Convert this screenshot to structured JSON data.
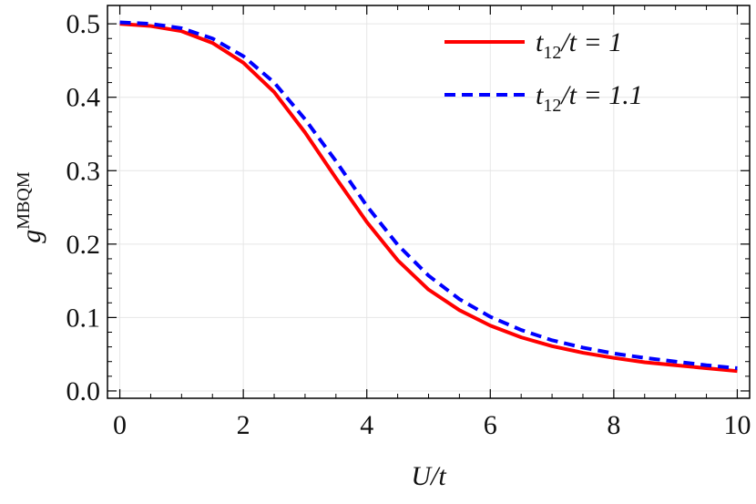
{
  "chart_data": {
    "type": "line",
    "xlabel": "U/t",
    "ylabel": "g^MBQM",
    "ylabel_base": "g",
    "ylabel_sup": "MBQM",
    "xlim": [
      -0.2,
      10.2
    ],
    "ylim": [
      -0.01,
      0.525
    ],
    "xticks": [
      0,
      2,
      4,
      6,
      8,
      10
    ],
    "xtick_labels": [
      "0",
      "2",
      "4",
      "6",
      "8",
      "10"
    ],
    "yticks": [
      0.0,
      0.1,
      0.2,
      0.3,
      0.4,
      0.5
    ],
    "ytick_labels": [
      "0.0",
      "0.1",
      "0.2",
      "0.3",
      "0.4",
      "0.5"
    ],
    "grid": true,
    "legend_position": "top-right",
    "series": [
      {
        "name": "t12/t = 1",
        "legend_base": "t",
        "legend_sub": "12",
        "legend_rest": "/t = 1",
        "color": "#ff0000",
        "style": "solid",
        "x": [
          0,
          0.5,
          1,
          1.5,
          2,
          2.5,
          3,
          3.5,
          4,
          4.5,
          5,
          5.5,
          6,
          6.5,
          7,
          7.5,
          8,
          8.5,
          9,
          9.5,
          10
        ],
        "y": [
          0.5,
          0.497,
          0.49,
          0.474,
          0.447,
          0.407,
          0.352,
          0.29,
          0.23,
          0.178,
          0.138,
          0.11,
          0.089,
          0.073,
          0.061,
          0.052,
          0.045,
          0.039,
          0.035,
          0.031,
          0.027
        ]
      },
      {
        "name": "t12/t = 1.1",
        "legend_base": "t",
        "legend_sub": "12",
        "legend_rest": "/t = 1.1",
        "color": "#0000ff",
        "style": "dashed",
        "x": [
          0,
          0.5,
          1,
          1.5,
          2,
          2.5,
          3,
          3.5,
          4,
          4.5,
          5,
          5.5,
          6,
          6.5,
          7,
          7.5,
          8,
          8.5,
          9,
          9.5,
          10
        ],
        "y": [
          0.502,
          0.5,
          0.494,
          0.48,
          0.456,
          0.42,
          0.37,
          0.313,
          0.252,
          0.199,
          0.157,
          0.125,
          0.101,
          0.083,
          0.069,
          0.059,
          0.051,
          0.045,
          0.04,
          0.035,
          0.031
        ]
      }
    ]
  }
}
